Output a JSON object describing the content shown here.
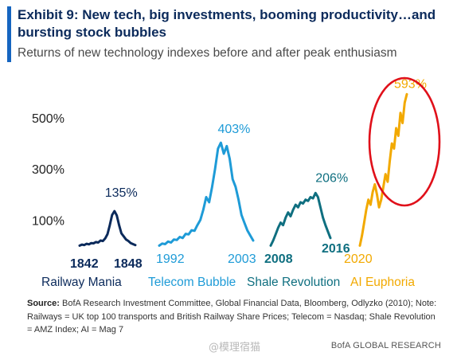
{
  "header": {
    "title": "Exhibit 9: New tech, big investments, booming productivity…and bursting stock bubbles",
    "subtitle": "Returns of new technology indexes before and after peak enthusiasm"
  },
  "chart_data": {
    "type": "line",
    "title": "Exhibit 9: New tech, big investments, booming productivity…and bursting stock bubbles",
    "subtitle": "Returns of new technology indexes before and after peak enthusiasm",
    "ylabel": "",
    "y_ticks": [
      "100%",
      "300%",
      "500%"
    ],
    "y_tick_values": [
      100,
      300,
      500
    ],
    "ylim": [
      -30,
      650
    ],
    "grid": false,
    "highlight": "red oval circling the AI Euphoria peak",
    "series": [
      {
        "name": "Railway Mania",
        "color": "#0b2a5b",
        "start_label": "1842",
        "end_label": "1848",
        "peak_label": "135%",
        "peak_value": 135,
        "values": [
          0,
          4,
          2,
          7,
          5,
          10,
          9,
          14,
          12,
          20,
          18,
          28,
          45,
          80,
          120,
          135,
          118,
          80,
          48,
          36,
          24,
          18,
          10,
          6,
          2
        ]
      },
      {
        "name": "Telecom Bubble",
        "color": "#1e9bd7",
        "start_label": "1992",
        "end_label": "2003",
        "peak_label": "403%",
        "peak_value": 403,
        "values": [
          0,
          8,
          6,
          16,
          12,
          24,
          22,
          34,
          30,
          46,
          44,
          60,
          58,
          80,
          100,
          140,
          190,
          170,
          230,
          300,
          380,
          403,
          360,
          390,
          340,
          260,
          230,
          180,
          120,
          90,
          60,
          40,
          20
        ]
      },
      {
        "name": "Shale Revolution",
        "color": "#0f6f80",
        "start_label": "2008",
        "end_label": "2016",
        "peak_label": "206%",
        "peak_value": 206,
        "values": [
          0,
          20,
          45,
          70,
          90,
          80,
          110,
          130,
          115,
          140,
          160,
          150,
          170,
          165,
          180,
          175,
          190,
          185,
          206,
          190,
          150,
          110,
          80,
          55,
          30
        ]
      },
      {
        "name": "AI Euphoria",
        "color": "#f2a900",
        "start_label": "2020",
        "end_label": "",
        "peak_label": "593%",
        "peak_value": 593,
        "values": [
          0,
          40,
          90,
          140,
          180,
          160,
          210,
          240,
          200,
          150,
          180,
          230,
          280,
          250,
          330,
          400,
          380,
          460,
          430,
          520,
          480,
          560,
          593
        ]
      }
    ]
  },
  "footer": {
    "source_label": "Source:",
    "source_text": " BofA Research Investment Committee, Global Financial Data, Bloomberg, Odlyzko (2010); Note: Railways = UK top 100 transports and British Railway Share Prices; Telecom = Nasdaq; Shale Revolution = AMZ Index; AI = Mag 7",
    "watermark": "@模理宿猫",
    "brand": "BofA GLOBAL RESEARCH"
  },
  "colors": {
    "accent": "#1565c0",
    "title": "#0b2a5b",
    "railway": "#0b2a5b",
    "telecom": "#1e9bd7",
    "shale": "#0f6f80",
    "ai": "#f2a900",
    "highlight_oval": "#e0101a"
  }
}
